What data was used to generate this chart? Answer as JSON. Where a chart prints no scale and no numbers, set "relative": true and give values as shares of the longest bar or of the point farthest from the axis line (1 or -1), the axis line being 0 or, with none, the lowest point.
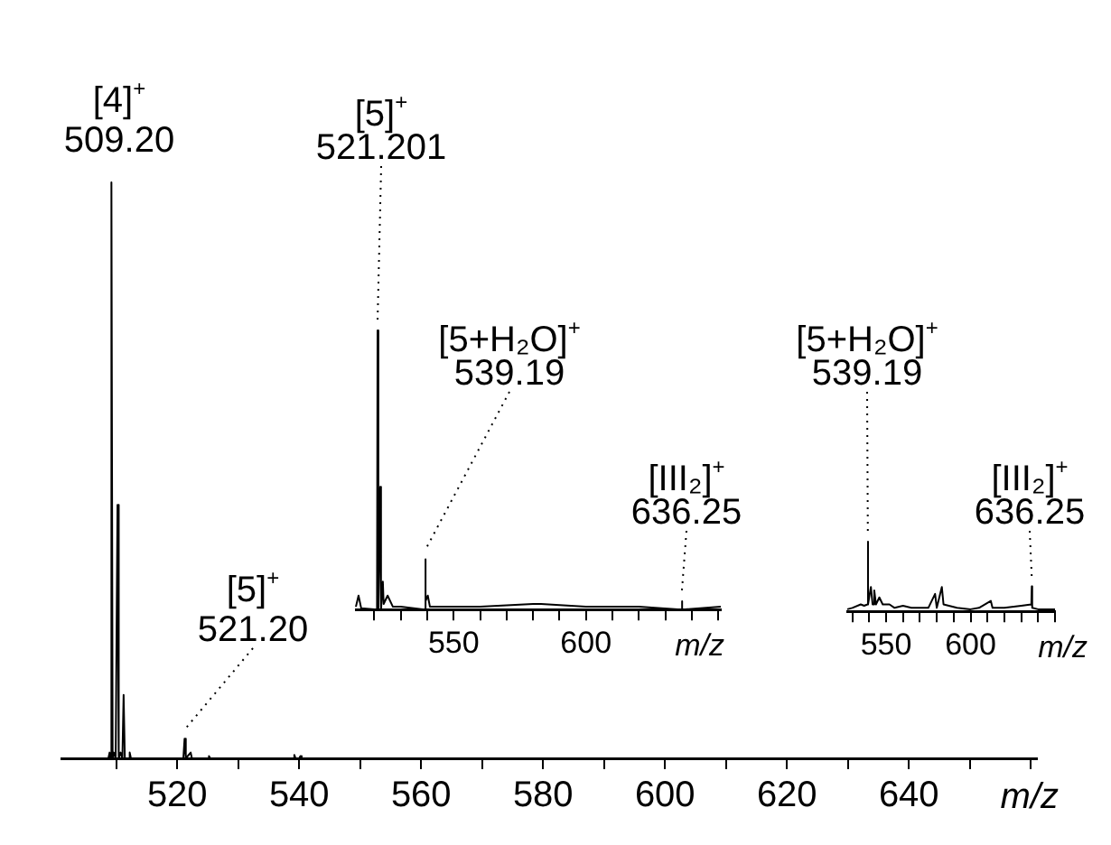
{
  "chart_data": [
    {
      "type": "line",
      "relative": true,
      "tick_labels": "x",
      "xlabel": "m/z",
      "xlim": [
        501,
        661
      ],
      "xticks": [
        {
          "value": 510,
          "label": null
        },
        520,
        {
          "value": 530,
          "label": null
        },
        540,
        {
          "value": 550,
          "label": null
        },
        560,
        {
          "value": 570,
          "label": null
        },
        580,
        {
          "value": 590,
          "label": null
        },
        600,
        {
          "value": 610,
          "label": null
        },
        620,
        {
          "value": 630,
          "label": null
        },
        640,
        {
          "value": 650,
          "label": null
        },
        {
          "value": 660,
          "label": null
        }
      ],
      "series": [
        {
          "color": "#000000",
          "x": [
            501,
            508.7,
            508.9,
            509.0,
            509.2,
            509.4,
            509.6,
            509.9,
            510.2,
            510.4,
            510.7,
            511.0,
            511.2,
            511.4,
            512.0,
            512.2,
            512.4,
            521.0,
            521.2,
            521.4,
            522.2,
            522.4,
            525.0,
            525.2,
            525.4,
            539.0,
            539.2,
            539.4,
            540.0,
            540.2,
            540.4,
            661
          ],
          "values": [
            0,
            0,
            0.01,
            0,
            1,
            0,
            0.01,
            0,
            0.44,
            0,
            0.01,
            0,
            0.11,
            0,
            0,
            0.01,
            0,
            0,
            0.034,
            0,
            0.01,
            0,
            0,
            0.004,
            0,
            0,
            0.006,
            0,
            0,
            0.004,
            0,
            0
          ]
        }
      ],
      "annotations": [
        {
          "text": "[4]$^{+}$ 509.20",
          "x": 509.2,
          "y": 1
        },
        {
          "text": "[5]$^{+}$ 521.20",
          "x": 521.2,
          "y": 0.034
        }
      ]
    },
    {
      "type": "line",
      "relative": true,
      "tick_labels": "x",
      "xlabel": "m/z",
      "xlim": [
        513,
        651
      ],
      "xticks": [
        {
          "value": 520,
          "label": null
        },
        {
          "value": 530,
          "label": null
        },
        {
          "value": 540,
          "label": null
        },
        550,
        {
          "value": 560,
          "label": null
        },
        {
          "value": 570,
          "label": null
        },
        {
          "value": 580,
          "label": null
        },
        {
          "value": 590,
          "label": null
        },
        600,
        {
          "value": 610,
          "label": null
        },
        {
          "value": 620,
          "label": null
        },
        {
          "value": 630,
          "label": null
        },
        {
          "value": 640,
          "label": null
        },
        {
          "value": 650,
          "label": null
        }
      ],
      "series": [
        {
          "color": "#000000",
          "x": [
            513,
            514,
            515,
            521.0,
            521.2,
            521.5,
            522.2,
            522.5,
            523.2,
            523.5,
            525,
            527,
            530,
            539.0,
            539.19,
            539.5,
            540.2,
            541,
            550,
            560,
            580,
            583,
            600,
            620,
            636.0,
            636.25,
            636.5,
            651
          ],
          "values": [
            0.01,
            0.05,
            0.005,
            0,
            1,
            0,
            0.44,
            0,
            0.1,
            0.02,
            0.05,
            0.01,
            0.01,
            0,
            0.18,
            0.03,
            0.05,
            0.01,
            0.01,
            0.01,
            0.02,
            0.02,
            0.01,
            0.01,
            0,
            0.03,
            0,
            0.01
          ]
        }
      ],
      "annotations": [
        {
          "text": "[5]$^{+}$ 521.201",
          "x": 521.2,
          "y": 1
        },
        {
          "text": "[5+H₂O]$^{+}$ 539.19",
          "x": 539.19,
          "y": 0.18
        },
        {
          "text": "[III₂]$^{+}$ 636.25",
          "x": 636.25,
          "y": 0.03
        }
      ]
    },
    {
      "type": "line",
      "relative": true,
      "tick_labels": "x",
      "xlabel": "m/z",
      "xlim": [
        527,
        650
      ],
      "xticks": [
        {
          "value": 530,
          "label": null
        },
        {
          "value": 540,
          "label": null
        },
        550,
        {
          "value": 560,
          "label": null
        },
        {
          "value": 570,
          "label": null
        },
        {
          "value": 580,
          "label": null
        },
        {
          "value": 590,
          "label": null
        },
        600,
        {
          "value": 610,
          "label": null
        },
        {
          "value": 620,
          "label": null
        },
        {
          "value": 630,
          "label": null
        },
        {
          "value": 640,
          "label": null
        },
        {
          "value": 650,
          "label": null
        }
      ],
      "series": [
        {
          "color": "#000000",
          "x": [
            527,
            530,
            535,
            537,
            539.0,
            539.19,
            539.4,
            541,
            542,
            543,
            544,
            546,
            548,
            552,
            555,
            560,
            565,
            575,
            579,
            580,
            583,
            584,
            592,
            600,
            605,
            612,
            613,
            620,
            630,
            636.0,
            636.25,
            636.5,
            640,
            650
          ],
          "values": [
            0.03,
            0.05,
            0.1,
            0.08,
            0.1,
            1,
            0.1,
            0.35,
            0.1,
            0.3,
            0.1,
            0.2,
            0.1,
            0.1,
            0.05,
            0.08,
            0.05,
            0.05,
            0.25,
            0.05,
            0.35,
            0.1,
            0.05,
            0.03,
            0.05,
            0.15,
            0.05,
            0.05,
            0.08,
            0.1,
            0.36,
            0.05,
            0.03,
            0.03
          ]
        }
      ],
      "annotations": [
        {
          "text": "[5+H₂O]$^{+}$ 539.19",
          "x": 539.19,
          "y": 1
        },
        {
          "text": "[III₂]$^{+}$ 636.25",
          "x": 636.25,
          "y": 0.36
        }
      ]
    }
  ]
}
